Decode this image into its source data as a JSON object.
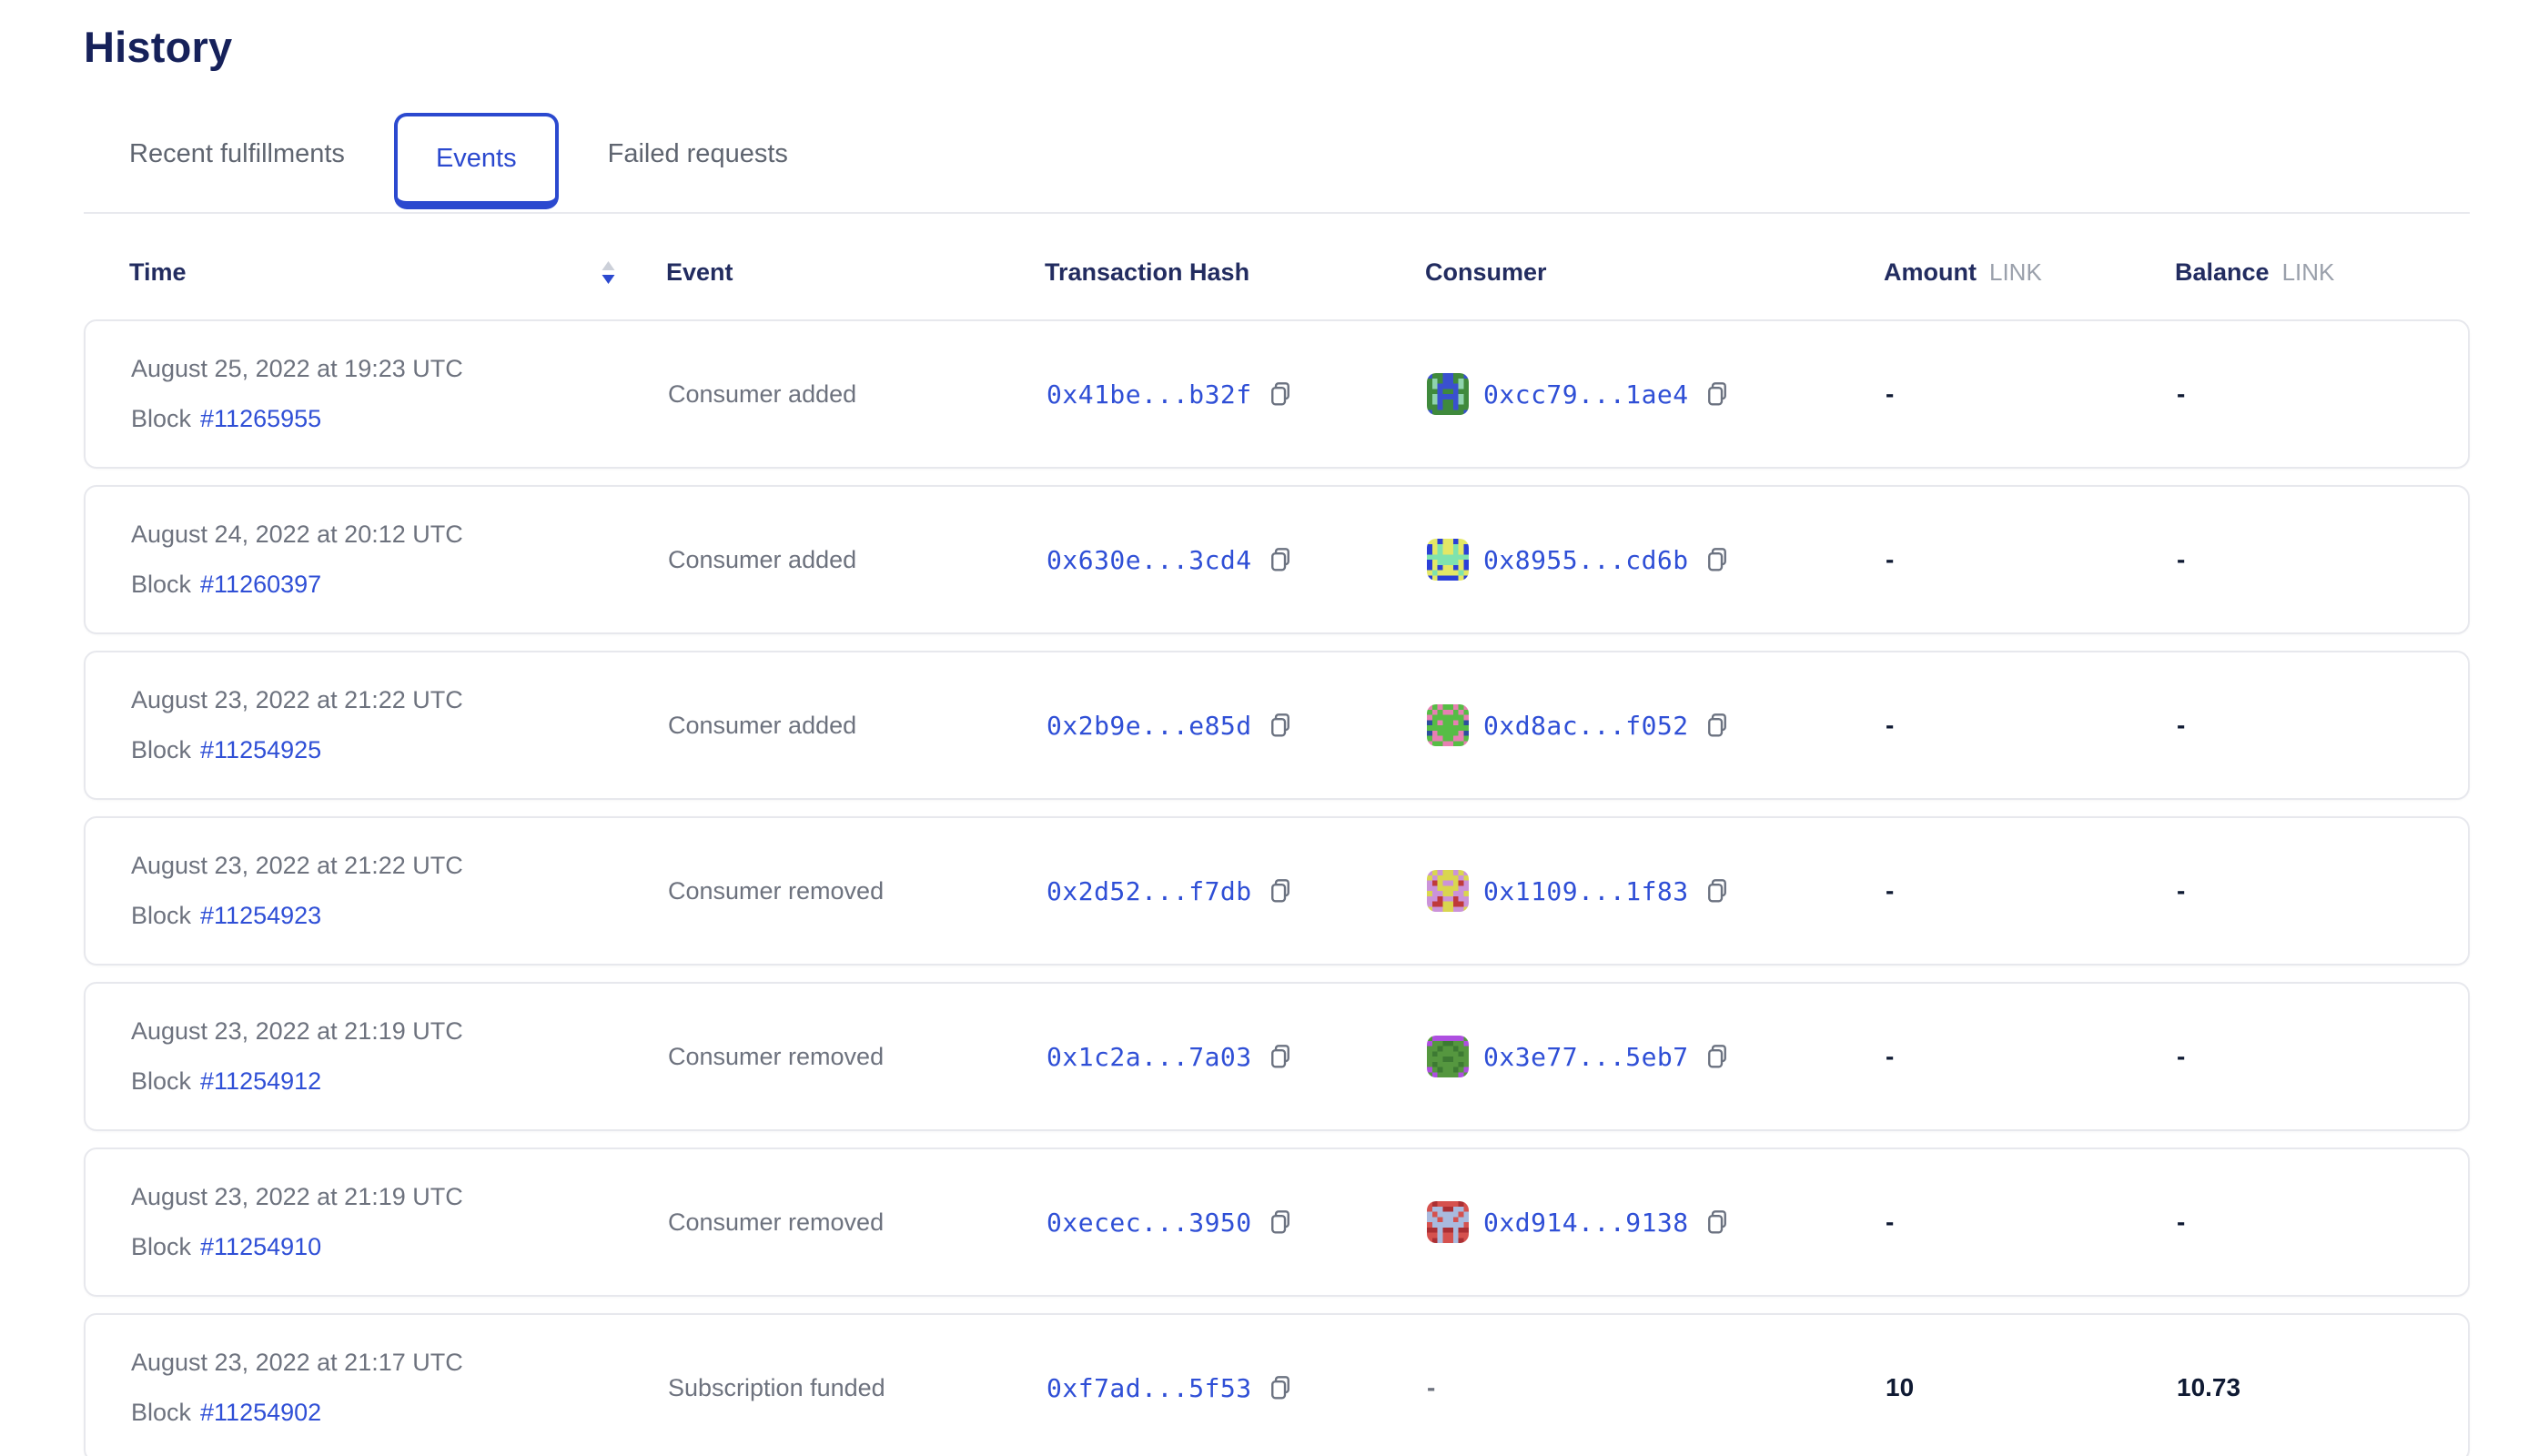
{
  "page": {
    "title": "History"
  },
  "tabs": [
    {
      "label": "Recent fulfillments",
      "active": false
    },
    {
      "label": "Events",
      "active": true
    },
    {
      "label": "Failed requests",
      "active": false
    }
  ],
  "table": {
    "headers": {
      "time": "Time",
      "event": "Event",
      "tx_hash": "Transaction Hash",
      "consumer": "Consumer",
      "amount": "Amount",
      "balance": "Balance",
      "unit": "LINK"
    },
    "rows": [
      {
        "date": "August 25, 2022 at 19:23 UTC",
        "block_label": "Block",
        "block": "#11265955",
        "event": "Consumer added",
        "tx": "0x41be...b32f",
        "consumer": "0xcc79...1ae4",
        "amount": "-",
        "balance": "-",
        "avatar": {
          "colors": [
            "#3f8a3c",
            "#3a50cf",
            "#8fd3ad"
          ],
          "grid": [
            "10011001",
            "02011020",
            "02111120",
            "00100100",
            "02111120",
            "02100120",
            "00100100",
            "10000001"
          ]
        }
      },
      {
        "date": "August 24, 2022 at 20:12 UTC",
        "block_label": "Block",
        "block": "#11260397",
        "event": "Consumer added",
        "tx": "0x630e...3cd4",
        "consumer": "0x8955...cd6b",
        "amount": "-",
        "balance": "-",
        "avatar": {
          "colors": [
            "#2b3fd8",
            "#e3e766",
            "#7fe3ae"
          ],
          "grid": [
            "11011011",
            "01211210",
            "01211210",
            "22222222",
            "01222210",
            "01011010",
            "12111121",
            "01000010"
          ]
        }
      },
      {
        "date": "August 23, 2022 at 21:22 UTC",
        "block_label": "Block",
        "block": "#11254925",
        "event": "Consumer added",
        "tx": "0x2b9e...e85d",
        "consumer": "0xd8ac...f052",
        "amount": "-",
        "balance": "-",
        "avatar": {
          "colors": [
            "#56bd45",
            "#e77fb2",
            "#2c4f9e"
          ],
          "grid": [
            "10100101",
            "01011010",
            "10000001",
            "20100102",
            "00000000",
            "21000012",
            "01100110",
            "10011001"
          ]
        }
      },
      {
        "date": "August 23, 2022 at 21:22 UTC",
        "block_label": "Block",
        "block": "#11254923",
        "event": "Consumer removed",
        "tx": "0x2d52...f7db",
        "consumer": "0x1109...1f83",
        "amount": "-",
        "balance": "-",
        "avatar": {
          "colors": [
            "#cb93d9",
            "#d9d64f",
            "#bf3a3a"
          ],
          "grid": [
            "01011010",
            "10111101",
            "02100120",
            "00111100",
            "10011001",
            "00200200",
            "02211220",
            "10011001"
          ]
        }
      },
      {
        "date": "August 23, 2022 at 21:19 UTC",
        "block_label": "Block",
        "block": "#11254912",
        "event": "Consumer removed",
        "tx": "0x1c2a...7a03",
        "consumer": "0x3e77...5eb7",
        "amount": "-",
        "balance": "-",
        "avatar": {
          "colors": [
            "#55973f",
            "#ae4fe0",
            "#3d7a33"
          ],
          "grid": [
            "01111110",
            "10022001",
            "00200200",
            "02000020",
            "00022000",
            "02000020",
            "10200201",
            "01000010"
          ]
        }
      },
      {
        "date": "August 23, 2022 at 21:19 UTC",
        "block_label": "Block",
        "block": "#11254910",
        "event": "Consumer removed",
        "tx": "0xecec...3950",
        "consumer": "0xd914...9138",
        "amount": "-",
        "balance": "-",
        "avatar": {
          "colors": [
            "#d5514e",
            "#a9bade",
            "#ab2f33"
          ],
          "grid": [
            "02000020",
            "01122110",
            "10111101",
            "11011011",
            "01111110",
            "22122122",
            "00100100",
            "02100120"
          ]
        }
      },
      {
        "date": "August 23, 2022 at 21:17 UTC",
        "block_label": "Block",
        "block": "#11254902",
        "event": "Subscription funded",
        "tx": "0xf7ad...5f53",
        "consumer": "-",
        "amount": "10",
        "balance": "10.73",
        "avatar": null
      }
    ]
  },
  "colors": {
    "accent_blue": "#2b49cf",
    "link_blue": "#2f4fd6",
    "heading_navy": "#16215a",
    "text_gray": "#6d727e",
    "unit_gray": "#9aa0ab",
    "value_dark": "#0f1a33",
    "border_gray": "#e7e8ed"
  }
}
